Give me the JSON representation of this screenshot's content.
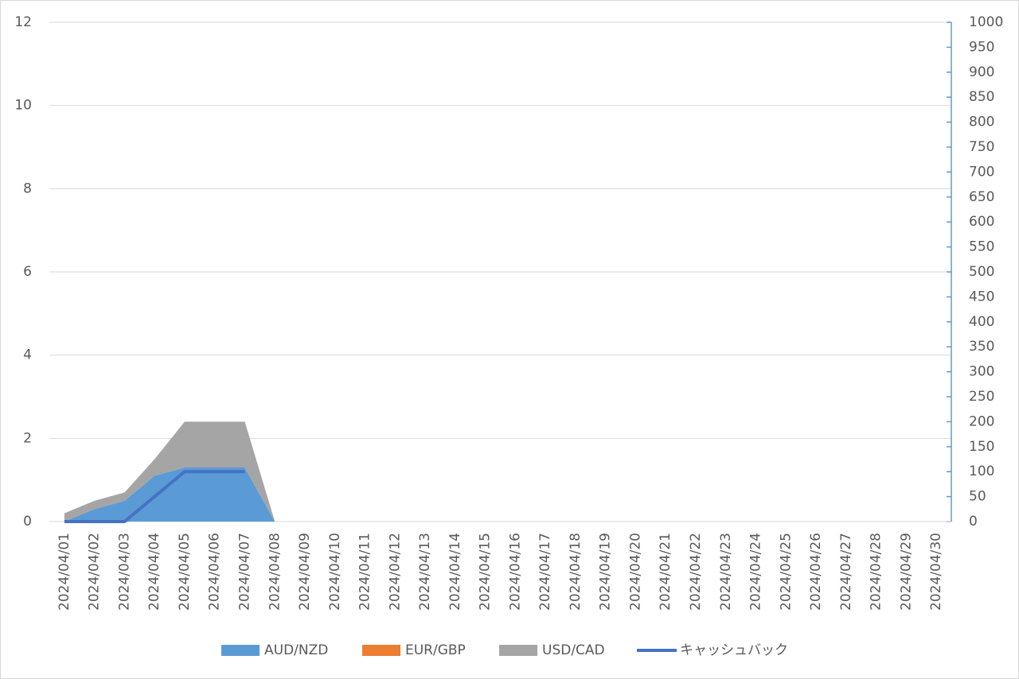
{
  "chart_data": {
    "type": "area",
    "categories": [
      "2024/04/01",
      "2024/04/02",
      "2024/04/03",
      "2024/04/04",
      "2024/04/05",
      "2024/04/06",
      "2024/04/07",
      "2024/04/08",
      "2024/04/09",
      "2024/04/10",
      "2024/04/11",
      "2024/04/12",
      "2024/04/13",
      "2024/04/14",
      "2024/04/15",
      "2024/04/16",
      "2024/04/17",
      "2024/04/18",
      "2024/04/19",
      "2024/04/20",
      "2024/04/21",
      "2024/04/22",
      "2024/04/23",
      "2024/04/24",
      "2024/04/25",
      "2024/04/26",
      "2024/04/27",
      "2024/04/28",
      "2024/04/29",
      "2024/04/30"
    ],
    "series": [
      {
        "name": "AUD/NZD",
        "color": "#5b9bd5",
        "values": [
          0,
          0.3,
          0.5,
          1.1,
          1.3,
          1.3,
          1.3,
          0,
          0,
          0,
          0,
          0,
          0,
          0,
          0,
          0,
          0,
          0,
          0,
          0,
          0,
          0,
          0,
          0,
          0,
          0,
          0,
          0,
          0,
          0
        ]
      },
      {
        "name": "EUR/GBP",
        "color": "#ed7d31",
        "values": [
          0,
          0,
          0,
          0,
          0,
          0,
          0,
          0,
          0,
          0,
          0,
          0,
          0,
          0,
          0,
          0,
          0,
          0,
          0,
          0,
          0,
          0,
          0,
          0,
          0,
          0,
          0,
          0,
          0,
          0
        ]
      },
      {
        "name": "USD/CAD",
        "color": "#a5a5a5",
        "values": [
          0.2,
          0.2,
          0.2,
          0.4,
          1.1,
          1.1,
          1.1,
          0,
          0,
          0,
          0,
          0,
          0,
          0,
          0,
          0,
          0,
          0,
          0,
          0,
          0,
          0,
          0,
          0,
          0,
          0,
          0,
          0,
          0,
          0
        ]
      },
      {
        "name": "キャッシュバック",
        "color": "#4472c4",
        "type": "line",
        "axis": "y2",
        "values": [
          0,
          0,
          0,
          50,
          100,
          100,
          100,
          null,
          null,
          null,
          null,
          null,
          null,
          null,
          null,
          null,
          null,
          null,
          null,
          null,
          null,
          null,
          null,
          null,
          null,
          null,
          null,
          null,
          null,
          null
        ]
      }
    ],
    "ylim": [
      0,
      12
    ],
    "yticks": [
      0,
      2,
      4,
      6,
      8,
      10,
      12
    ],
    "y2lim": [
      0,
      1000
    ],
    "y2ticks": [
      0,
      50,
      100,
      150,
      200,
      250,
      300,
      350,
      400,
      450,
      500,
      550,
      600,
      650,
      700,
      750,
      800,
      850,
      900,
      950,
      1000
    ],
    "grid": true,
    "legend": "bottom"
  }
}
